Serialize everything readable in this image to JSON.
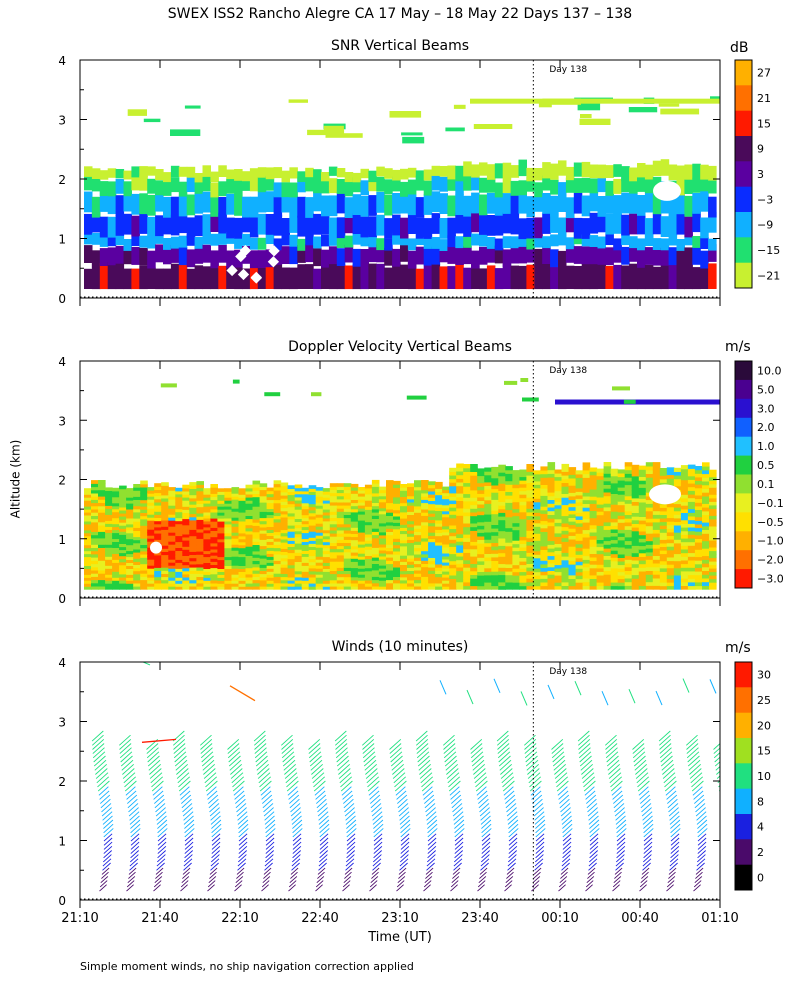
{
  "main_title": "SWEX ISS2 Rancho Alegre CA  17 May – 18 May 22 Days 137 – 138",
  "y_axis_label": "Altitude (km)",
  "x_axis_label": "Time (UT)",
  "footnote": "Simple moment winds, no ship navigation correction applied",
  "day_marker": "Day 138",
  "chart_data": [
    {
      "type": "heatmap",
      "title": "SNR Vertical Beams",
      "colorbar_unit": "dB",
      "colorbar_ticks": [
        "27",
        "21",
        "15",
        "9",
        "3",
        "−3",
        "−9",
        "−15",
        "−21"
      ],
      "colorbar_colors": [
        "#ffb000",
        "#ff7000",
        "#ff1a00",
        "#4a0a5a",
        "#5a00a0",
        "#0a2cff",
        "#10b0ff",
        "#20e070",
        "#c8f030"
      ],
      "ylim": [
        0,
        4
      ],
      "yticks": [
        "0",
        "1",
        "2",
        "3",
        "4"
      ],
      "xticks": [
        "21:10",
        "21:40",
        "22:10",
        "22:40",
        "23:10",
        "23:40",
        "00:10",
        "00:40",
        "01:10"
      ],
      "layers": [
        {
          "from": 0.15,
          "to": 0.55,
          "value": 9
        },
        {
          "from": 0.55,
          "to": 0.85,
          "value": 0
        },
        {
          "from": 0.85,
          "to": 1.05,
          "value": -9
        },
        {
          "from": 1.05,
          "to": 1.4,
          "value": -3
        },
        {
          "from": 1.4,
          "to": 1.75,
          "value": -9
        },
        {
          "from": 1.75,
          "to": 2.0,
          "value": -15
        },
        {
          "from": 2.0,
          "to": 2.2,
          "value": -21
        }
      ]
    },
    {
      "type": "heatmap",
      "title": "Doppler Velocity Vertical Beams",
      "colorbar_unit": "m/s",
      "colorbar_ticks": [
        "10.0",
        "5.0",
        "3.0",
        "2.0",
        "1.0",
        "0.5",
        "0.1",
        "−0.1",
        "−0.5",
        "−1.0",
        "−2.0",
        "−3.0"
      ],
      "colorbar_colors": [
        "#2a0a3a",
        "#4a0090",
        "#2a10d0",
        "#1060ff",
        "#20c0ff",
        "#20d040",
        "#90e030",
        "#e8f020",
        "#ffe000",
        "#ffb000",
        "#ff7000",
        "#ff1a00"
      ],
      "ylim": [
        0,
        4
      ],
      "yticks": [
        "0",
        "1",
        "2",
        "3",
        "4"
      ],
      "xticks": [
        "21:10",
        "21:40",
        "22:10",
        "22:40",
        "23:10",
        "23:40",
        "00:10",
        "00:40",
        "01:10"
      ]
    },
    {
      "type": "scatter",
      "title": "Winds (10 minutes)",
      "colorbar_unit": "m/s",
      "colorbar_ticks": [
        "30",
        "25",
        "20",
        "15",
        "10",
        "8",
        "4",
        "2",
        "0"
      ],
      "colorbar_colors": [
        "#ff1a00",
        "#ff7000",
        "#ffb000",
        "#a0e020",
        "#20e080",
        "#10b0ff",
        "#1a20e0",
        "#4a0a6a",
        "#000000"
      ],
      "ylim": [
        0,
        4
      ],
      "yticks": [
        "0",
        "1",
        "2",
        "3",
        "4"
      ],
      "xticks": [
        "21:10",
        "21:40",
        "22:10",
        "22:40",
        "23:10",
        "23:40",
        "00:10",
        "00:40",
        "01:10"
      ],
      "xlabel": "Time (UT)",
      "profile_count": 24,
      "profile_top_km": 2.7,
      "speed_by_altitude": [
        {
          "from": 0.0,
          "to": 0.5,
          "speed": 3
        },
        {
          "from": 0.5,
          "to": 1.0,
          "speed": 6
        },
        {
          "from": 1.0,
          "to": 1.8,
          "speed": 10
        },
        {
          "from": 1.8,
          "to": 2.7,
          "speed": 15
        }
      ]
    }
  ]
}
